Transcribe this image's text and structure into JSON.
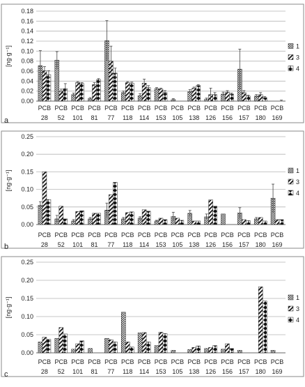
{
  "chart_data": [
    {
      "type": "bar",
      "panel_label": "a",
      "ylabel": "[ng·g⁻¹]",
      "ylim": [
        0,
        0.18
      ],
      "yticks": [
        "0.00",
        "0.02",
        "0.04",
        "0.06",
        "0.08",
        "0.10",
        "0.12",
        "0.14",
        "0.16",
        "0.18"
      ],
      "categories": [
        "28",
        "52",
        "101",
        "81",
        "77",
        "118",
        "114",
        "153",
        "105",
        "138",
        "126",
        "156",
        "157",
        "180",
        "169"
      ],
      "category_prefix": "PCB",
      "legend_position": "right",
      "series": [
        {
          "name": "1",
          "values": [
            0.071,
            0.082,
            0.013,
            0.005,
            0.121,
            0.017,
            0.011,
            0.025,
            0.003,
            0.019,
            0.004,
            0.014,
            0.064,
            0.01,
            0.0
          ],
          "errors": [
            0.03,
            0.017,
            0.003,
            0.002,
            0.04,
            0.003,
            0.004,
            0.002,
            0.002,
            0.004,
            0.002,
            0.004,
            0.04,
            0.003,
            0.0
          ]
        },
        {
          "name": "3",
          "values": [
            0.061,
            0.02,
            0.037,
            0.033,
            0.08,
            0.037,
            0.036,
            0.024,
            0.0,
            0.026,
            0.013,
            0.018,
            0.017,
            0.013,
            0.0
          ],
          "errors": [
            0.008,
            0.004,
            0.002,
            0.004,
            0.03,
            0.002,
            0.008,
            0.002,
            0.0,
            0.002,
            0.013,
            0.003,
            0.004,
            0.004,
            0.0
          ]
        },
        {
          "name": "4",
          "values": [
            0.053,
            0.025,
            0.035,
            0.043,
            0.056,
            0.036,
            0.027,
            0.017,
            0.0,
            0.031,
            0.013,
            0.014,
            0.01,
            0.007,
            0.0
          ],
          "errors": [
            0.008,
            0.01,
            0.002,
            0.002,
            0.01,
            0.002,
            0.004,
            0.004,
            0.0,
            0.002,
            0.004,
            0.002,
            0.002,
            0.002,
            0.002
          ]
        }
      ]
    },
    {
      "type": "bar",
      "panel_label": "b",
      "ylabel": "[ng·g⁻¹]",
      "ylim": [
        0,
        0.25
      ],
      "yticks": [
        "0.00",
        "0.05",
        "0.10",
        "0.15",
        "0.20",
        "0.25"
      ],
      "categories": [
        "28",
        "52",
        "101",
        "81",
        "77",
        "118",
        "114",
        "153",
        "105",
        "138",
        "126",
        "156",
        "157",
        "180",
        "169"
      ],
      "category_prefix": "PCB",
      "legend_position": "right",
      "series": [
        {
          "name": "1",
          "values": [
            0.055,
            0.016,
            0.01,
            0.016,
            0.041,
            0.016,
            0.018,
            0.01,
            0.023,
            0.032,
            0.022,
            0.03,
            0.033,
            0.016,
            0.075
          ],
          "errors": [
            0.01,
            0.01,
            0.004,
            0.004,
            0.02,
            0.004,
            0.004,
            0.002,
            0.012,
            0.008,
            0.008,
            0.0,
            0.015,
            0.004,
            0.04
          ]
        },
        {
          "name": "3",
          "values": [
            0.15,
            0.052,
            0.037,
            0.032,
            0.085,
            0.034,
            0.042,
            0.018,
            0.018,
            0.01,
            0.07,
            0.0,
            0.014,
            0.02,
            0.014
          ]
        },
        {
          "name": "4",
          "values": [
            0.071,
            0.016,
            0.039,
            0.032,
            0.12,
            0.036,
            0.038,
            0.014,
            0.012,
            0.01,
            0.052,
            0.0,
            0.011,
            0.01,
            0.014
          ]
        }
      ]
    },
    {
      "type": "bar",
      "panel_label": "c",
      "ylabel": "[ng·g⁻¹]",
      "ylim": [
        0,
        0.25
      ],
      "yticks": [
        "0.00",
        "0.05",
        "0.10",
        "0.15",
        "0.20",
        "0.25"
      ],
      "categories": [
        "28",
        "52",
        "101",
        "81",
        "77",
        "118",
        "114",
        "153",
        "105",
        "138",
        "126",
        "156",
        "157",
        "180",
        "169"
      ],
      "category_prefix": "PCB",
      "legend_position": "right",
      "series": [
        {
          "name": "1",
          "values": [
            0.03,
            0.04,
            0.01,
            0.012,
            0.04,
            0.112,
            0.055,
            0.02,
            0.007,
            0.009,
            0.012,
            0.01,
            0.007,
            0.0,
            0.007
          ]
        },
        {
          "name": "3",
          "values": [
            0.043,
            0.07,
            0.025,
            0.0,
            0.036,
            0.03,
            0.056,
            0.057,
            0.0,
            0.015,
            0.015,
            0.025,
            0.0,
            0.182,
            0.0
          ]
        },
        {
          "name": "4",
          "values": [
            0.037,
            0.052,
            0.033,
            0.0,
            0.03,
            0.016,
            0.03,
            0.053,
            0.0,
            0.019,
            0.02,
            0.012,
            0.0,
            0.143,
            0.0
          ]
        }
      ]
    }
  ]
}
